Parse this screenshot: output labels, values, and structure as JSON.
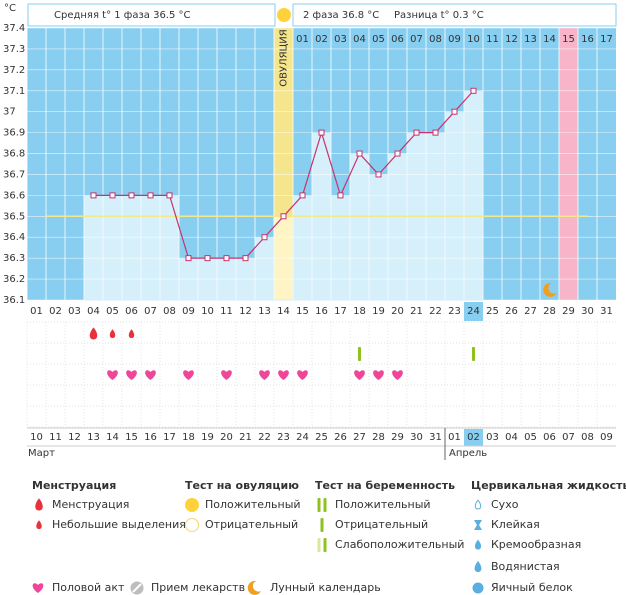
{
  "chart_data": {
    "type": "line",
    "unit": "°C",
    "phase1": "Средняя t° 1 фаза 36.5 °C",
    "phase2": "2 фаза 36.8 °C",
    "difference": "Разница t° 0.3 °C",
    "ovulation_label": "ОВУЛЯЦИЯ",
    "categories": [
      "01",
      "02",
      "03",
      "04",
      "05",
      "06",
      "07",
      "08",
      "09",
      "10",
      "11",
      "12",
      "13",
      "14",
      "15",
      "16",
      "17",
      "18",
      "19",
      "20",
      "21",
      "22",
      "23",
      "24",
      "25",
      "26",
      "27",
      "28",
      "29",
      "30",
      "31"
    ],
    "dpo_labels": [
      null,
      null,
      null,
      null,
      null,
      null,
      null,
      null,
      null,
      null,
      null,
      null,
      null,
      null,
      "01",
      "02",
      "03",
      "04",
      "05",
      "06",
      "07",
      "08",
      "09",
      "10",
      "11",
      "12",
      "13",
      "14",
      "15",
      "16",
      "17"
    ],
    "values": [
      null,
      null,
      null,
      36.6,
      36.6,
      36.6,
      36.6,
      36.6,
      36.3,
      36.3,
      36.3,
      36.3,
      36.4,
      36.5,
      36.6,
      36.9,
      36.6,
      36.8,
      36.7,
      36.8,
      36.9,
      36.9,
      37.0,
      37.1,
      null,
      null,
      null,
      null,
      null,
      null,
      null
    ],
    "color": "#c8326e",
    "coverline": 36.5,
    "ylim": [
      36.1,
      37.4
    ],
    "yticks": [
      36.1,
      36.2,
      36.3,
      36.4,
      36.5,
      36.6,
      36.7,
      36.8,
      36.9,
      37,
      37.1,
      37.2,
      37.3,
      37.4
    ],
    "ovulation_day": 14,
    "today": 24,
    "expected_period_day": 29,
    "moon_day": 28,
    "dates": [
      "10",
      "11",
      "12",
      "13",
      "14",
      "15",
      "16",
      "17",
      "18",
      "19",
      "20",
      "21",
      "22",
      "23",
      "24",
      "25",
      "26",
      "27",
      "28",
      "29",
      "30",
      "31",
      "01",
      "02",
      "03",
      "04",
      "05",
      "06",
      "07",
      "08",
      "09"
    ],
    "holidays": [
      2,
      3,
      9,
      10,
      16,
      17,
      23,
      30,
      31
    ],
    "months": [
      "Март",
      "Апрель"
    ],
    "month_start_day": 23,
    "menstruation_heavy": [
      4
    ],
    "menstruation_light": [
      5,
      6
    ],
    "pregnancy_negative": [
      18,
      24
    ],
    "intercourse": [
      5,
      6,
      7,
      9,
      11,
      13,
      14,
      15,
      18,
      19,
      20
    ]
  },
  "legend": {
    "groups": [
      {
        "title": "Менструация",
        "items": [
          "Менструация",
          "Небольшие выделения"
        ]
      },
      {
        "title": "Тест на овуляцию",
        "items": [
          "Положительный",
          "Отрицательный"
        ]
      },
      {
        "title": "Тест на беременность",
        "items": [
          "Положительный",
          "Отрицательный",
          "Слабоположительный"
        ]
      },
      {
        "title": "Цервикальная жидкость",
        "items": [
          "Сухо",
          "Клейкая",
          "Кремообразная",
          "Водянистая",
          "Яичный белок"
        ]
      }
    ],
    "other": [
      "Половой акт",
      "Прием лекарств",
      "Лунный календарь"
    ]
  }
}
